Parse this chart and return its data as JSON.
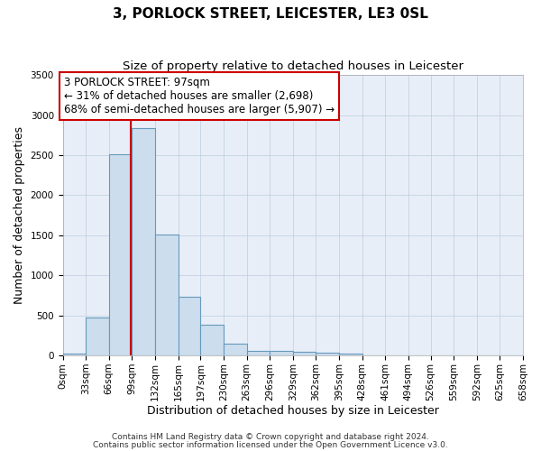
{
  "title": "3, PORLOCK STREET, LEICESTER, LE3 0SL",
  "subtitle": "Size of property relative to detached houses in Leicester",
  "xlabel": "Distribution of detached houses by size in Leicester",
  "ylabel": "Number of detached properties",
  "bar_color": "#ccdded",
  "bar_edge_color": "#6699bb",
  "grid_color": "#bbccdd",
  "background_color": "#e8eef8",
  "bins": [
    0,
    33,
    66,
    99,
    132,
    165,
    197,
    230,
    263,
    296,
    329,
    362,
    395,
    428,
    461,
    494,
    526,
    559,
    592,
    625,
    658
  ],
  "bin_labels": [
    "0sqm",
    "33sqm",
    "66sqm",
    "99sqm",
    "132sqm",
    "165sqm",
    "197sqm",
    "230sqm",
    "263sqm",
    "296sqm",
    "329sqm",
    "362sqm",
    "395sqm",
    "428sqm",
    "461sqm",
    "494sqm",
    "526sqm",
    "559sqm",
    "592sqm",
    "625sqm",
    "658sqm"
  ],
  "values": [
    25,
    475,
    2510,
    2840,
    1505,
    735,
    385,
    145,
    60,
    55,
    50,
    35,
    25,
    0,
    0,
    0,
    0,
    0,
    0,
    0
  ],
  "property_size": 97,
  "vline_color": "#cc0000",
  "annotation_text": "3 PORLOCK STREET: 97sqm\n← 31% of detached houses are smaller (2,698)\n68% of semi-detached houses are larger (5,907) →",
  "annotation_box_color": "#cc0000",
  "ylim": [
    0,
    3500
  ],
  "yticks": [
    0,
    500,
    1000,
    1500,
    2000,
    2500,
    3000,
    3500
  ],
  "footer_line1": "Contains HM Land Registry data © Crown copyright and database right 2024.",
  "footer_line2": "Contains public sector information licensed under the Open Government Licence v3.0.",
  "title_fontsize": 11,
  "subtitle_fontsize": 9.5,
  "axis_label_fontsize": 9,
  "tick_fontsize": 7.5,
  "annotation_fontsize": 8.5,
  "footer_fontsize": 6.5
}
